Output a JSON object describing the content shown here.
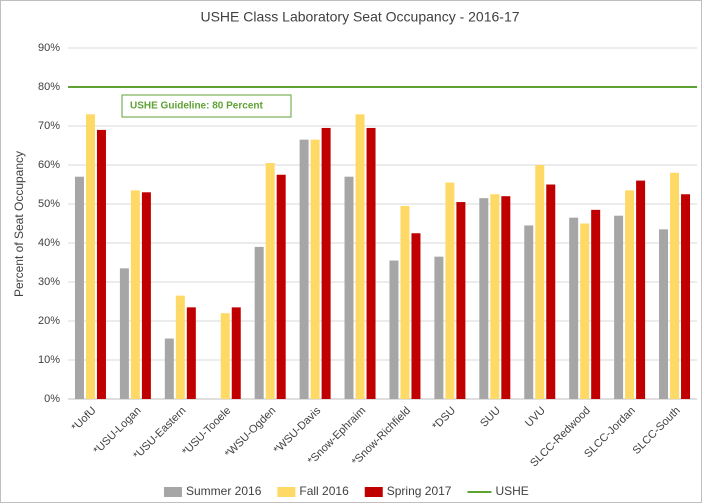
{
  "chart_data": {
    "type": "bar",
    "title": "USHE Class Laboratory Seat Occupancy - 2016-17",
    "y_axis_label": "Percent of Seat Occupancy",
    "categories": [
      "*UofU",
      "*USU-Logan",
      "*USU-Eastern",
      "*USU-Tooele",
      "*WSU-Ogden",
      "*WSU-Davis",
      "*Snow-Ephraim",
      "*Snow-Richfield",
      "*DSU",
      "SUU",
      "UVU",
      "SLCC-Redwood",
      "SLCC-Jordan",
      "SLCC-South"
    ],
    "series": [
      {
        "name": "Summer 2016",
        "color": "#a6a6a6",
        "values": [
          57,
          33.5,
          15.5,
          null,
          39,
          66.5,
          57,
          35.5,
          36.5,
          51.5,
          44.5,
          46.5,
          47,
          43.5
        ]
      },
      {
        "name": "Fall 2016",
        "color": "#ffd966",
        "values": [
          73,
          53.5,
          26.5,
          22,
          60.5,
          66.5,
          73,
          49.5,
          55.5,
          52.5,
          60,
          45,
          53.5,
          58
        ]
      },
      {
        "name": "Spring 2017",
        "color": "#c00000",
        "values": [
          69,
          53,
          23.5,
          23.5,
          57.5,
          69.5,
          69.5,
          42.5,
          50.5,
          52,
          55,
          48.5,
          56,
          52.5
        ]
      }
    ],
    "reference_line": {
      "name": "USHE",
      "value": 80,
      "color": "#5fa234"
    },
    "annotation": "USHE Guideline: 80 Percent",
    "ylim": [
      0,
      90
    ],
    "yticks": [
      {
        "value": 0,
        "label": "0%"
      },
      {
        "value": 10,
        "label": "10%"
      },
      {
        "value": 20,
        "label": "20%"
      },
      {
        "value": 30,
        "label": "30%"
      },
      {
        "value": 40,
        "label": "40%"
      },
      {
        "value": 50,
        "label": "50%"
      },
      {
        "value": 60,
        "label": "60%"
      },
      {
        "value": 70,
        "label": "70%"
      },
      {
        "value": 80,
        "label": "80%"
      },
      {
        "value": 90,
        "label": "90%"
      }
    ],
    "grid": true,
    "legend": "bottom"
  }
}
